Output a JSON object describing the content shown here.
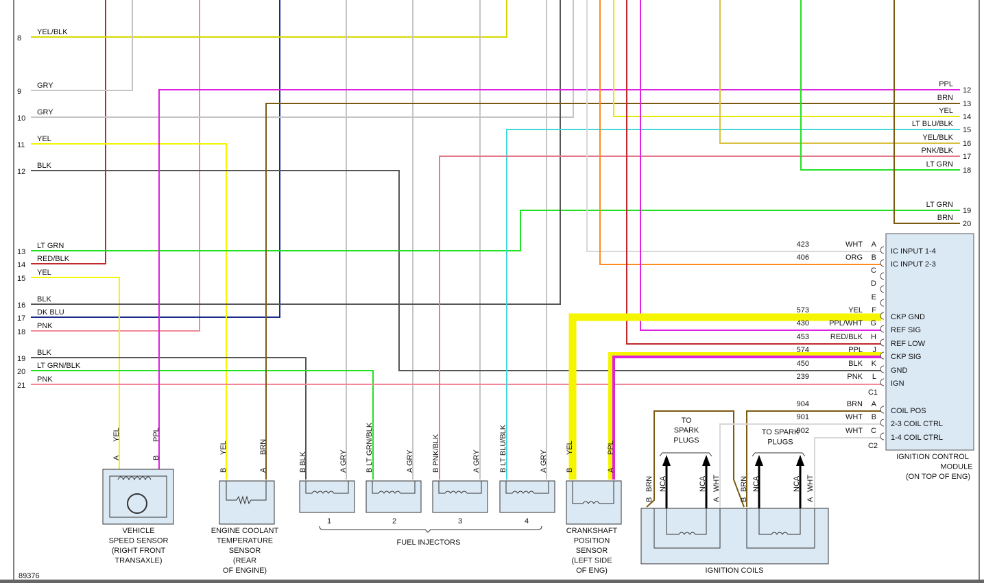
{
  "left_pins": [
    {
      "pin": "8",
      "wire": "YEL/BLK"
    },
    {
      "pin": "9",
      "wire": "GRY"
    },
    {
      "pin": "10",
      "wire": "GRY"
    },
    {
      "pin": "11",
      "wire": "YEL"
    },
    {
      "pin": "12",
      "wire": "BLK"
    },
    {
      "pin": "13",
      "wire": "LT GRN"
    },
    {
      "pin": "14",
      "wire": "RED/BLK"
    },
    {
      "pin": "15",
      "wire": "YEL"
    },
    {
      "pin": "16",
      "wire": "BLK"
    },
    {
      "pin": "17",
      "wire": "DK BLU"
    },
    {
      "pin": "18",
      "wire": "PNK"
    },
    {
      "pin": "19",
      "wire": "BLK"
    },
    {
      "pin": "20",
      "wire": "LT GRN/BLK"
    },
    {
      "pin": "21",
      "wire": "PNK"
    }
  ],
  "right_pins": [
    {
      "pin": "12",
      "wire": "PPL"
    },
    {
      "pin": "13",
      "wire": "BRN"
    },
    {
      "pin": "14",
      "wire": "YEL"
    },
    {
      "pin": "15",
      "wire": "LT BLU/BLK"
    },
    {
      "pin": "16",
      "wire": "YEL/BLK"
    },
    {
      "pin": "17",
      "wire": "PNK/BLK"
    },
    {
      "pin": "18",
      "wire": "LT GRN"
    },
    {
      "pin": "19",
      "wire": "LT GRN"
    },
    {
      "pin": "20",
      "wire": "BRN"
    }
  ],
  "module": {
    "label": [
      "IGNITION CONTROL",
      "MODULE",
      "(ON TOP OF ENG)"
    ],
    "c1_label": "C1",
    "c2_label": "C2",
    "c1": [
      {
        "circuit": "423",
        "wire": "WHT",
        "pin": "A",
        "function": "IC INPUT 1-4"
      },
      {
        "circuit": "406",
        "wire": "ORG",
        "pin": "B",
        "function": "IC INPUT 2-3"
      },
      {
        "pin": "C"
      },
      {
        "pin": "D"
      },
      {
        "pin": "E"
      },
      {
        "circuit": "573",
        "wire": "YEL",
        "pin": "F",
        "function": "CKP GND"
      },
      {
        "circuit": "430",
        "wire": "PPL/WHT",
        "pin": "G",
        "function": "REF SIG"
      },
      {
        "circuit": "453",
        "wire": "RED/BLK",
        "pin": "H",
        "function": "REF LOW"
      },
      {
        "circuit": "574",
        "wire": "PPL",
        "pin": "J",
        "function": "CKP SIG"
      },
      {
        "circuit": "450",
        "wire": "BLK",
        "pin": "K",
        "function": "GND"
      },
      {
        "circuit": "239",
        "wire": "PNK",
        "pin": "L",
        "function": "IGN"
      }
    ],
    "c2": [
      {
        "circuit": "904",
        "wire": "BRN",
        "pin": "A",
        "function": "COIL POS"
      },
      {
        "circuit": "901",
        "wire": "WHT",
        "pin": "B",
        "function": "2-3 COIL CTRL"
      },
      {
        "circuit": "902",
        "wire": "WHT",
        "pin": "C",
        "function": "1-4 COIL CTRL"
      }
    ]
  },
  "vss": {
    "pins": [
      {
        "pin": "A",
        "wire": "YEL"
      },
      {
        "pin": "B",
        "wire": "PPL"
      }
    ],
    "label": [
      "VEHICLE",
      "SPEED SENSOR",
      "(RIGHT FRONT",
      "TRANSAXLE)"
    ]
  },
  "ect": {
    "pins": [
      {
        "pin": "B",
        "wire": "YEL"
      },
      {
        "pin": "A",
        "wire": "BRN"
      }
    ],
    "label": [
      "ENGINE COOLANT",
      "TEMPERATURE",
      "SENSOR",
      "(REAR",
      "OF ENGINE)"
    ]
  },
  "injectors": {
    "items": [
      {
        "number": "1",
        "pins": [
          {
            "pin": "B",
            "wire": "BLK"
          },
          {
            "pin": "A",
            "wire": "GRY"
          }
        ]
      },
      {
        "number": "2",
        "pins": [
          {
            "pin": "B",
            "wire": "LT GRN/BLK"
          },
          {
            "pin": "A",
            "wire": "GRY"
          }
        ]
      },
      {
        "number": "3",
        "pins": [
          {
            "pin": "B",
            "wire": "PNK/BLK"
          },
          {
            "pin": "A",
            "wire": "GRY"
          }
        ]
      },
      {
        "number": "4",
        "pins": [
          {
            "pin": "B",
            "wire": "LT BLU/BLK"
          },
          {
            "pin": "A",
            "wire": "GRY"
          }
        ]
      }
    ],
    "label": "FUEL INJECTORS"
  },
  "ckp": {
    "pins": [
      {
        "pin": "B",
        "wire": "YEL"
      },
      {
        "pin": "A",
        "wire": "PPL"
      }
    ],
    "label": [
      "CRANKSHAFT",
      "POSITION",
      "SENSOR",
      "(LEFT SIDE",
      "OF ENG)"
    ]
  },
  "coils": {
    "pins": [
      {
        "pin": "B",
        "wire": "BRN"
      },
      {
        "wire": "NCA"
      },
      {
        "wire": "NCA"
      },
      {
        "pin": "A",
        "wire": "WHT"
      },
      {
        "pin": "B",
        "wire": "BRN"
      },
      {
        "wire": "NCA"
      },
      {
        "wire": "NCA"
      },
      {
        "pin": "A",
        "wire": "WHT"
      }
    ],
    "spark_labels": [
      [
        "TO",
        "SPARK",
        "PLUGS"
      ],
      [
        "TO SPARK",
        "PLUGS"
      ]
    ],
    "label": "IGNITION COILS"
  },
  "figure_number": "89376"
}
